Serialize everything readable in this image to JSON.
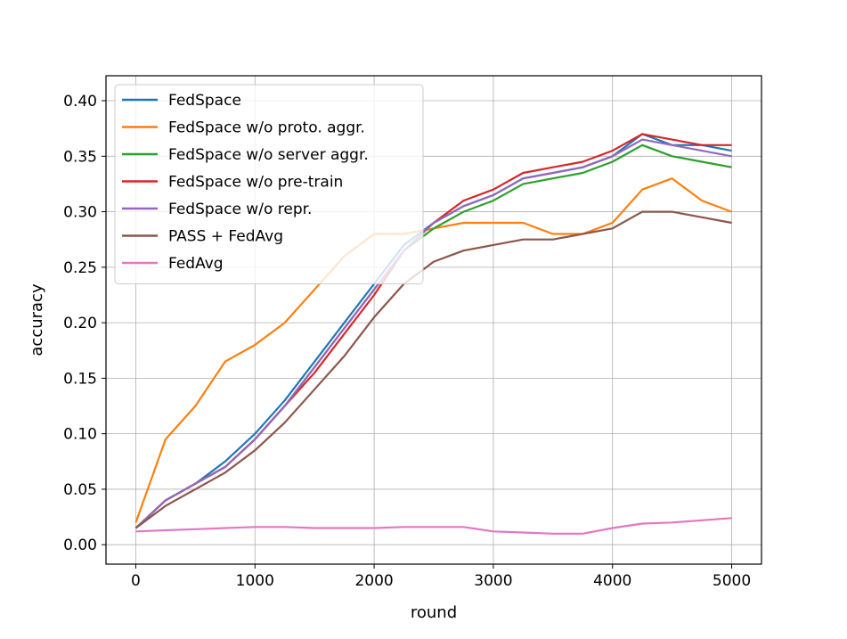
{
  "chart_data": {
    "type": "line",
    "title": "",
    "xlabel": "round",
    "ylabel": "accuracy",
    "xlim": [
      -250,
      5250
    ],
    "ylim": [
      -0.0175,
      0.4225
    ],
    "xticks": [
      0,
      1000,
      2000,
      3000,
      4000,
      5000
    ],
    "xtick_labels": [
      "0",
      "1000",
      "2000",
      "3000",
      "4000",
      "5000"
    ],
    "yticks": [
      0.0,
      0.05,
      0.1,
      0.15,
      0.2,
      0.25,
      0.3,
      0.35,
      0.4
    ],
    "ytick_labels": [
      "0.00",
      "0.05",
      "0.10",
      "0.15",
      "0.20",
      "0.25",
      "0.30",
      "0.35",
      "0.40"
    ],
    "grid": true,
    "legend_position": "top-left",
    "x": [
      0,
      250,
      500,
      750,
      1000,
      1250,
      1500,
      1750,
      2000,
      2250,
      2500,
      2750,
      3000,
      3250,
      3500,
      3750,
      4000,
      4250,
      4500,
      4750,
      5000
    ],
    "series": [
      {
        "name": "FedSpace",
        "color": "#1f77b4",
        "values": [
          0.015,
          0.04,
          0.055,
          0.075,
          0.1,
          0.13,
          0.165,
          0.2,
          0.235,
          0.27,
          0.29,
          0.305,
          0.315,
          0.33,
          0.335,
          0.34,
          0.35,
          0.37,
          0.36,
          0.36,
          0.355
        ]
      },
      {
        "name": "FedSpace w/o proto. aggr.",
        "color": "#ff7f0e",
        "values": [
          0.02,
          0.095,
          0.125,
          0.165,
          0.18,
          0.2,
          0.23,
          0.26,
          0.28,
          0.28,
          0.285,
          0.29,
          0.29,
          0.29,
          0.28,
          0.28,
          0.29,
          0.32,
          0.33,
          0.31,
          0.3
        ]
      },
      {
        "name": "FedSpace w/o server aggr.",
        "color": "#2ca02c",
        "values": [
          0.015,
          0.04,
          0.055,
          0.07,
          0.095,
          0.125,
          0.16,
          0.195,
          0.23,
          0.265,
          0.285,
          0.3,
          0.31,
          0.325,
          0.33,
          0.335,
          0.345,
          0.36,
          0.35,
          0.345,
          0.34
        ]
      },
      {
        "name": "FedSpace w/o pre-train",
        "color": "#d62728",
        "values": [
          0.015,
          0.04,
          0.055,
          0.07,
          0.095,
          0.125,
          0.155,
          0.19,
          0.225,
          0.265,
          0.29,
          0.31,
          0.32,
          0.335,
          0.34,
          0.345,
          0.355,
          0.37,
          0.365,
          0.36,
          0.36
        ]
      },
      {
        "name": "FedSpace w/o repr.",
        "color": "#9467bd",
        "values": [
          0.015,
          0.04,
          0.055,
          0.07,
          0.095,
          0.125,
          0.16,
          0.195,
          0.23,
          0.265,
          0.29,
          0.305,
          0.315,
          0.33,
          0.335,
          0.34,
          0.35,
          0.365,
          0.36,
          0.355,
          0.35
        ]
      },
      {
        "name": "PASS + FedAvg",
        "color": "#8c564b",
        "values": [
          0.015,
          0.035,
          0.05,
          0.065,
          0.085,
          0.11,
          0.14,
          0.17,
          0.205,
          0.235,
          0.255,
          0.265,
          0.27,
          0.275,
          0.275,
          0.28,
          0.285,
          0.3,
          0.3,
          0.295,
          0.29
        ]
      },
      {
        "name": "FedAvg",
        "color": "#e377c2",
        "values": [
          0.012,
          0.013,
          0.014,
          0.015,
          0.016,
          0.016,
          0.015,
          0.015,
          0.015,
          0.016,
          0.016,
          0.016,
          0.012,
          0.011,
          0.01,
          0.01,
          0.015,
          0.019,
          0.02,
          0.022,
          0.024
        ]
      }
    ]
  }
}
